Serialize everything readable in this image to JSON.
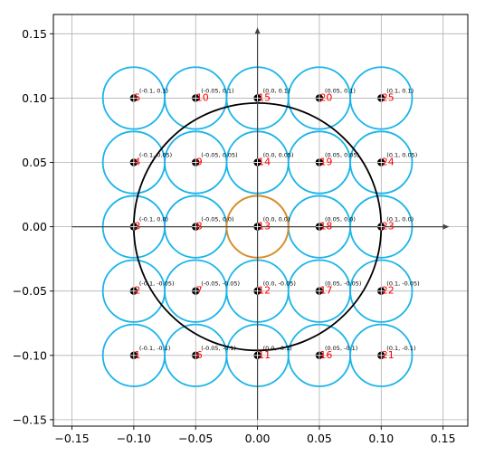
{
  "chart_data": {
    "type": "scatter",
    "title": "",
    "xlabel": "",
    "ylabel": "",
    "xlim": [
      -0.165,
      0.17
    ],
    "ylim": [
      -0.155,
      0.165
    ],
    "grid": true,
    "x_ticks": [
      -0.15,
      -0.1,
      -0.05,
      0.0,
      0.05,
      0.1,
      0.15
    ],
    "y_ticks": [
      -0.15,
      -0.1,
      -0.05,
      0.0,
      0.05,
      0.1,
      0.15
    ],
    "x_tick_labels": [
      "−0.15",
      "−0.10",
      "−0.05",
      "0.00",
      "0.05",
      "0.10",
      "0.15"
    ],
    "y_tick_labels": [
      "−0.15",
      "−0.10",
      "−0.05",
      "0.00",
      "0.05",
      "0.10",
      "0.15"
    ],
    "axes_arrows": {
      "x_from": -0.15,
      "x_to": 0.155,
      "y_from": -0.15,
      "y_to": 0.155
    },
    "points": [
      {
        "id": "1",
        "x": -0.1,
        "y": -0.1,
        "label": "(-0.1, -0.1)"
      },
      {
        "id": "2",
        "x": -0.1,
        "y": -0.05,
        "label": "(-0.1, -0.05)"
      },
      {
        "id": "3",
        "x": -0.1,
        "y": 0.0,
        "label": "(-0.1, 0.0)"
      },
      {
        "id": "4",
        "x": -0.1,
        "y": 0.05,
        "label": "(-0.1, 0.05)"
      },
      {
        "id": "5",
        "x": -0.1,
        "y": 0.1,
        "label": "(-0.1, 0.1)"
      },
      {
        "id": "6",
        "x": -0.05,
        "y": -0.1,
        "label": "(-0.05, -0.1)"
      },
      {
        "id": "7",
        "x": -0.05,
        "y": -0.05,
        "label": "(-0.05, -0.05)"
      },
      {
        "id": "8",
        "x": -0.05,
        "y": 0.0,
        "label": "(-0.05, 0.0)"
      },
      {
        "id": "9",
        "x": -0.05,
        "y": 0.05,
        "label": "(-0.05, 0.05)"
      },
      {
        "id": "10",
        "x": -0.05,
        "y": 0.1,
        "label": "(-0.05, 0.1)"
      },
      {
        "id": "11",
        "x": 0.0,
        "y": -0.1,
        "label": "(0.0, -0.1)"
      },
      {
        "id": "12",
        "x": 0.0,
        "y": -0.05,
        "label": "(0.0, -0.05)"
      },
      {
        "id": "13",
        "x": 0.0,
        "y": 0.0,
        "label": "(0.0, 0.0)"
      },
      {
        "id": "14",
        "x": 0.0,
        "y": 0.05,
        "label": "(0.0, 0.05)"
      },
      {
        "id": "15",
        "x": 0.0,
        "y": 0.1,
        "label": "(0.0, 0.1)"
      },
      {
        "id": "16",
        "x": 0.05,
        "y": -0.1,
        "label": "(0.05, -0.1)"
      },
      {
        "id": "17",
        "x": 0.05,
        "y": -0.05,
        "label": "(0.05, -0.05)"
      },
      {
        "id": "18",
        "x": 0.05,
        "y": 0.0,
        "label": "(0.05, 0.0)"
      },
      {
        "id": "19",
        "x": 0.05,
        "y": 0.05,
        "label": "(0.05, 0.05)"
      },
      {
        "id": "20",
        "x": 0.05,
        "y": 0.1,
        "label": "(0.05, 0.1)"
      },
      {
        "id": "21",
        "x": 0.1,
        "y": -0.1,
        "label": "(0.1, -0.1)"
      },
      {
        "id": "22",
        "x": 0.1,
        "y": -0.05,
        "label": "(0.1, -0.05)"
      },
      {
        "id": "23",
        "x": 0.1,
        "y": 0.0,
        "label": "(0.1, 0.0)"
      },
      {
        "id": "24",
        "x": 0.1,
        "y": 0.05,
        "label": "(0.1, 0.05)"
      },
      {
        "id": "25",
        "x": 0.1,
        "y": 0.1,
        "label": "(0.1, 0.1)"
      }
    ],
    "point_circle_radius": 0.025,
    "large_circle": {
      "cx": 0.0,
      "cy": 0.0,
      "r": 0.1
    },
    "highlight_circle": {
      "cx": 0.0,
      "cy": 0.0,
      "r": 0.025
    },
    "colors": {
      "point_circle": "#1ab4ea",
      "highlight_circle": "#e8891b",
      "large_circle": "#000000",
      "marker": "#000000",
      "index_label": "#ff0000",
      "coord_label": "#000000",
      "grid": "#b0b0b0",
      "arrow": "#444444"
    }
  }
}
